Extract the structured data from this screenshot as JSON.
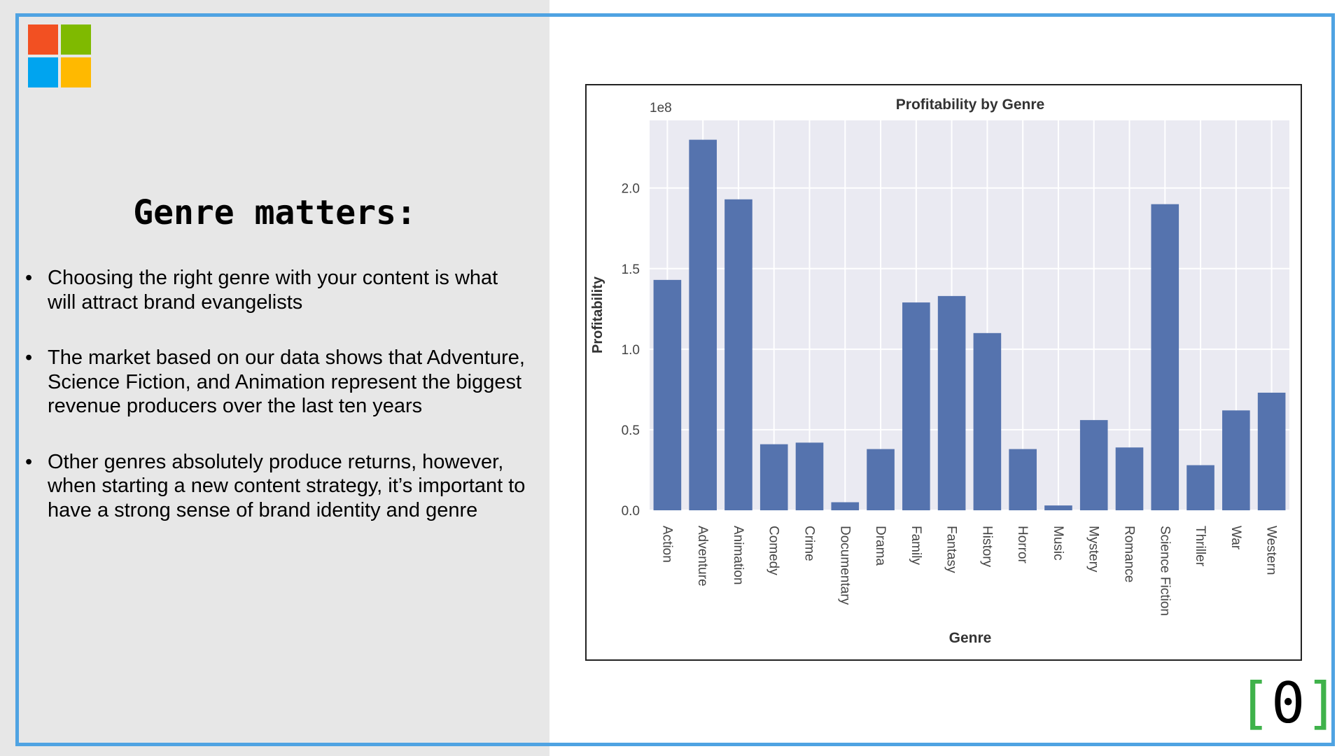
{
  "slide": {
    "heading": "Genre matters:",
    "bullets": [
      "Choosing the right genre with your content is what will attract brand evangelists",
      "The market based on our data shows that Adventure, Science Fiction, and Animation represent the biggest revenue producers over the last ten years",
      "Other genres absolutely produce returns, however, when starting a new content strategy, it’s important to have a strong sense of brand identity and genre"
    ],
    "logo": {
      "icon": "microsoft-logo",
      "colors": [
        "#f25022",
        "#7fba00",
        "#00a4ef",
        "#ffb900"
      ]
    },
    "badge": {
      "open": "[",
      "number": "0",
      "close": "]",
      "bracket_color": "#3fb24a"
    },
    "colors": {
      "frame": "#4fa3e2",
      "left_panel": "#e7e7e7"
    }
  },
  "chart_data": {
    "type": "bar",
    "title": "Profitability by Genre",
    "xlabel": "Genre",
    "ylabel": "Profitability",
    "scale_label": "1e8",
    "categories": [
      "Action",
      "Adventure",
      "Animation",
      "Comedy",
      "Crime",
      "Documentary",
      "Drama",
      "Family",
      "Fantasy",
      "History",
      "Horror",
      "Music",
      "Mystery",
      "Romance",
      "Science Fiction",
      "Thriller",
      "War",
      "Western"
    ],
    "values": [
      1.43,
      2.3,
      1.93,
      0.41,
      0.42,
      0.05,
      0.38,
      1.29,
      1.33,
      1.1,
      0.38,
      0.03,
      0.56,
      0.39,
      1.9,
      0.28,
      0.62,
      0.73
    ],
    "ylim": [
      0,
      2.42
    ],
    "yticks": [
      0.0,
      0.5,
      1.0,
      1.5,
      2.0
    ],
    "ytick_labels": [
      "0.0",
      "0.5",
      "1.0",
      "1.5",
      "2.0"
    ],
    "grid": true,
    "bar_color": "#5573ae",
    "plot_background": "#eaeaf2"
  }
}
